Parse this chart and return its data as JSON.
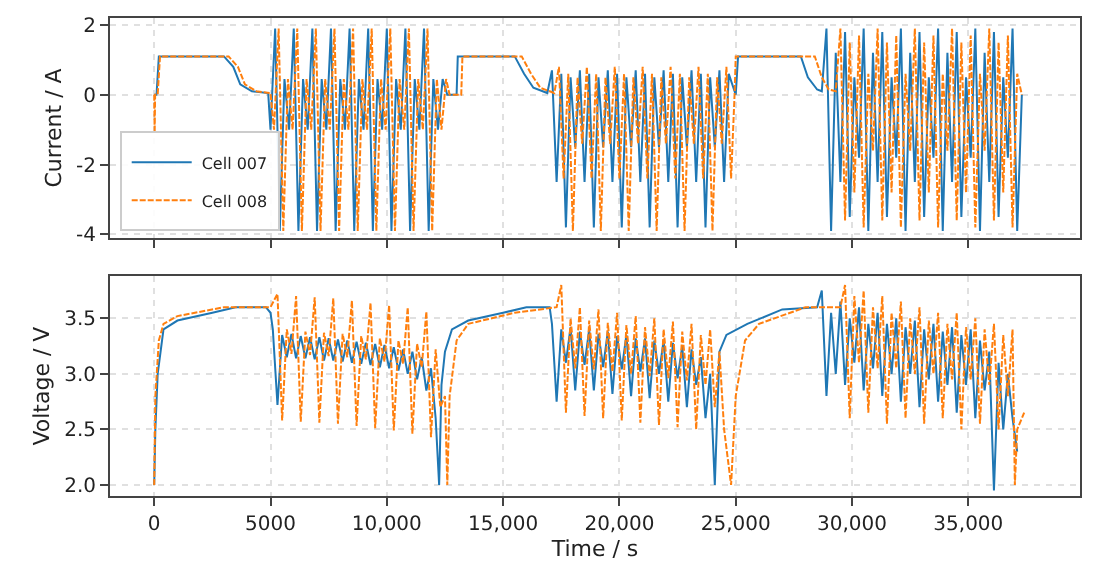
{
  "chart_data": [
    {
      "type": "line",
      "ylabel": "Current / A",
      "xlim": [
        -1900,
        39800
      ],
      "ylim": [
        -4.1,
        2.2
      ],
      "yticks": [
        -4,
        -2,
        0,
        2
      ],
      "xticks": [
        0,
        5000,
        10000,
        15000,
        20000,
        25000,
        30000,
        35000
      ],
      "tick_labels": "y",
      "grid": true,
      "legend": "bottom left",
      "marker": "none",
      "series": [
        {
          "name": "Cell 007",
          "color": "#1f77b4",
          "line_style": "solid",
          "x": [
            0,
            100,
            200,
            3000,
            3400,
            3700,
            4200,
            4900,
            5000,
            5200,
            5400,
            5600,
            5800,
            6000,
            6200,
            6400,
            6600,
            6800,
            7000,
            7200,
            7400,
            7600,
            7800,
            8000,
            8200,
            8400,
            8600,
            8800,
            9000,
            9200,
            9400,
            9600,
            9800,
            10000,
            10200,
            10400,
            10600,
            10800,
            11000,
            11200,
            11400,
            11600,
            11800,
            12000,
            12200,
            12400,
            12600,
            13000,
            13050,
            15500,
            15900,
            16300,
            16900,
            17100,
            17300,
            17500,
            17700,
            17900,
            18100,
            18300,
            18500,
            18700,
            18900,
            19100,
            19300,
            19500,
            19700,
            19900,
            20100,
            20300,
            20500,
            20700,
            20900,
            21100,
            21300,
            21500,
            21700,
            21900,
            22100,
            22300,
            22500,
            22700,
            22900,
            23100,
            23300,
            23500,
            23700,
            23900,
            24100,
            24300,
            24500,
            24700,
            25000,
            25100,
            27800,
            28100,
            28500,
            28700,
            28900,
            29100,
            29300,
            29500,
            29700,
            29900,
            30100,
            30300,
            30500,
            30700,
            30900,
            31100,
            31300,
            31500,
            31700,
            31900,
            32100,
            32300,
            32500,
            32700,
            32900,
            33100,
            33300,
            33500,
            33700,
            33900,
            34100,
            34300,
            34500,
            34700,
            34900,
            35100,
            35300,
            35500,
            35700,
            35900,
            36100,
            36300,
            36500,
            36700,
            36900,
            37100,
            37300
          ],
          "values": [
            0,
            0,
            1.1,
            1.1,
            0.8,
            0.3,
            0.1,
            0.05,
            -1,
            1.9,
            -3.9,
            0.45,
            -1,
            1.9,
            -3.9,
            0.45,
            -1,
            1.9,
            -3.9,
            0.45,
            -1,
            1.9,
            -3.9,
            0.45,
            -1,
            1.9,
            -3.9,
            0.45,
            -1,
            1.9,
            -3.9,
            0.45,
            -1,
            1.9,
            -3.9,
            0.45,
            -1,
            1.9,
            -3.9,
            0.45,
            -1,
            1.9,
            -3.9,
            0.45,
            -1,
            0.45,
            0,
            0,
            1.1,
            1.1,
            0.6,
            0.2,
            0.05,
            0.7,
            -2.5,
            0.6,
            -3.8,
            0.5,
            -1.5,
            0.7,
            -2.5,
            0.6,
            -3.8,
            0.5,
            -1.5,
            0.7,
            -2.5,
            0.6,
            -3.8,
            0.5,
            -1.5,
            0.7,
            -2.5,
            0.6,
            -3.8,
            0.5,
            -1.5,
            0.7,
            -2.5,
            0.6,
            -3.8,
            0.5,
            -1.5,
            0.7,
            -2.5,
            0.6,
            -3.8,
            0.5,
            -1.5,
            0.7,
            -2.5,
            0.6,
            0,
            1.1,
            1.1,
            0.5,
            0.15,
            0.1,
            1.9,
            -3.9,
            1.2,
            -2.5,
            1.8,
            -3.5,
            0.5,
            -1.8,
            1.9,
            -3.9,
            1.2,
            -2.5,
            1.8,
            -3.5,
            0.5,
            -1.8,
            1.9,
            -3.9,
            1.2,
            -2.5,
            1.8,
            -3.5,
            0.5,
            -1.8,
            1.9,
            -3.9,
            1.2,
            -2.5,
            1.8,
            -3.5,
            0.5,
            -1.8,
            1.9,
            -3.9,
            1.2,
            -2.5,
            1.8,
            -3.5,
            0.5,
            -1.8,
            1.9,
            -3.9,
            0
          ]
        },
        {
          "name": "Cell 008",
          "color": "#ff7f0e",
          "line_style": "dashed",
          "x": [
            0,
            20,
            40,
            150,
            250,
            3200,
            3600,
            3900,
            4400,
            5000,
            5150,
            5350,
            5550,
            5750,
            5950,
            6150,
            6350,
            6550,
            6750,
            6950,
            7150,
            7350,
            7550,
            7750,
            7950,
            8150,
            8350,
            8550,
            8750,
            8950,
            9150,
            9350,
            9550,
            9750,
            9950,
            10150,
            10350,
            10550,
            10750,
            10950,
            11150,
            11350,
            11550,
            11750,
            11950,
            12150,
            12350,
            12550,
            12700,
            13200,
            13250,
            15800,
            16200,
            16600,
            17200,
            17400,
            17600,
            17800,
            18000,
            18200,
            18400,
            18600,
            18800,
            19000,
            19200,
            19400,
            19600,
            19800,
            20000,
            20200,
            20400,
            20600,
            20800,
            21000,
            21200,
            21400,
            21600,
            21800,
            22000,
            22200,
            22400,
            22600,
            22800,
            23000,
            23200,
            23400,
            23600,
            23800,
            24000,
            24200,
            24400,
            24600,
            24800,
            24950,
            25000,
            28400,
            28700,
            29000,
            29300,
            29500,
            29700,
            29900,
            30100,
            30300,
            30500,
            30700,
            30900,
            31100,
            31300,
            31500,
            31700,
            31900,
            32100,
            32300,
            32500,
            32700,
            32900,
            33100,
            33300,
            33500,
            33700,
            33900,
            34100,
            34300,
            34500,
            34700,
            34900,
            35100,
            35300,
            35500,
            35700,
            35900,
            36100,
            36300,
            36500,
            36700,
            36900,
            37100,
            37300
          ],
          "values": [
            0,
            -1.1,
            0,
            0,
            1.1,
            1.1,
            0.8,
            0.3,
            0.1,
            0.05,
            -1,
            1.9,
            -3.9,
            0.45,
            -1,
            1.9,
            -3.9,
            0.45,
            -1,
            1.9,
            -3.9,
            0.45,
            -1,
            1.9,
            -3.9,
            0.45,
            -1,
            1.9,
            -3.9,
            0.45,
            -1,
            1.9,
            -3.9,
            0.45,
            -1,
            1.9,
            -3.9,
            0.45,
            -1,
            1.9,
            -3.9,
            0.45,
            -1,
            1.9,
            -3.9,
            0.45,
            -1,
            0.45,
            0,
            0,
            1.1,
            1.1,
            0.6,
            0.2,
            0.05,
            0.8,
            -2.4,
            0.6,
            -3.9,
            0.5,
            -1.4,
            0.8,
            -2.4,
            0.6,
            -3.9,
            0.5,
            -1.4,
            0.8,
            -2.4,
            0.6,
            -3.9,
            0.5,
            -1.4,
            0.8,
            -2.4,
            0.6,
            -3.9,
            0.5,
            -1.4,
            0.8,
            -2.4,
            0.6,
            -3.9,
            0.5,
            -1.4,
            0.8,
            -2.4,
            0.6,
            -3.9,
            0.5,
            -1.4,
            0.8,
            -2.4,
            0,
            1.1,
            1.1,
            0.5,
            0.15,
            0.1,
            1.9,
            -3.6,
            1.5,
            -2.8,
            1.7,
            -3.8,
            0.6,
            -1.6,
            1.9,
            -3.6,
            1.5,
            -2.8,
            1.7,
            -3.8,
            0.6,
            -1.6,
            1.9,
            -3.6,
            1.5,
            -2.8,
            1.7,
            -3.8,
            0.6,
            -1.6,
            1.9,
            -3.6,
            1.5,
            -2.8,
            1.7,
            -3.8,
            0.6,
            -1.6,
            1.9,
            -3.6,
            1.5,
            -2.8,
            1.7,
            -3.8,
            0.6,
            0
          ]
        }
      ]
    },
    {
      "type": "line",
      "xlabel": "Time / s",
      "ylabel": "Voltage / V",
      "xlim": [
        -1900,
        39800
      ],
      "ylim": [
        1.9,
        3.88
      ],
      "yticks": [
        {
          "value": 2,
          "label": "2.0"
        },
        2.5,
        {
          "value": 3,
          "label": "3.0"
        },
        3.5
      ],
      "xticks": [
        0,
        5000,
        {
          "value": 10000,
          "label": "10,000"
        },
        {
          "value": 15000,
          "label": "15,000"
        },
        {
          "value": 20000,
          "label": "20,000"
        },
        {
          "value": 25000,
          "label": "25,000"
        },
        {
          "value": 30000,
          "label": "30,000"
        },
        {
          "value": 35000,
          "label": "35,000"
        }
      ],
      "grid": true,
      "marker": "none",
      "series": [
        {
          "color": "#1f77b4",
          "line_style": "solid",
          "x": [
            0,
            50,
            150,
            400,
            1000,
            2500,
            3500,
            4800,
            5000,
            5100,
            5300,
            5500,
            5700,
            5900,
            6100,
            6300,
            6500,
            6700,
            6900,
            7100,
            7300,
            7500,
            7700,
            7900,
            8100,
            8300,
            8500,
            8700,
            8900,
            9100,
            9300,
            9500,
            9700,
            9900,
            10100,
            10300,
            10500,
            10700,
            10900,
            11100,
            11300,
            11500,
            11700,
            11900,
            12100,
            12250,
            12350,
            12500,
            12800,
            13500,
            15000,
            16000,
            17000,
            17100,
            17300,
            17500,
            17700,
            17900,
            18100,
            18300,
            18500,
            18700,
            18900,
            19100,
            19300,
            19500,
            19700,
            19900,
            20100,
            20300,
            20500,
            20700,
            20900,
            21100,
            21300,
            21500,
            21700,
            21900,
            22100,
            22300,
            22500,
            22700,
            22900,
            23100,
            23300,
            23500,
            23700,
            23900,
            24100,
            24300,
            24600,
            25500,
            27000,
            28500,
            28700,
            28900,
            29100,
            29300,
            29500,
            29700,
            29900,
            30100,
            30300,
            30500,
            30700,
            30900,
            31100,
            31300,
            31500,
            31700,
            31900,
            32100,
            32300,
            32500,
            32700,
            32900,
            33100,
            33300,
            33500,
            33700,
            33900,
            34100,
            34300,
            34500,
            34700,
            34900,
            35100,
            35300,
            35500,
            35700,
            35900,
            36100,
            36300,
            36500,
            36700,
            36900,
            37100
          ],
          "values": [
            2.0,
            2.5,
            3.0,
            3.4,
            3.48,
            3.55,
            3.6,
            3.6,
            3.55,
            3.4,
            2.72,
            3.35,
            3.15,
            3.36,
            3.14,
            3.34,
            3.14,
            3.33,
            3.13,
            3.33,
            3.12,
            3.32,
            3.12,
            3.31,
            3.11,
            3.3,
            3.1,
            3.29,
            3.09,
            3.28,
            3.08,
            3.27,
            3.06,
            3.26,
            3.05,
            3.24,
            3.03,
            3.22,
            3.0,
            3.2,
            2.95,
            3.15,
            2.85,
            3.05,
            2.6,
            2.0,
            2.9,
            3.2,
            3.4,
            3.48,
            3.55,
            3.6,
            3.6,
            3.45,
            2.75,
            3.4,
            3.1,
            3.42,
            2.85,
            3.38,
            3.08,
            3.4,
            2.85,
            3.36,
            3.06,
            3.38,
            2.82,
            3.34,
            3.04,
            3.35,
            2.8,
            3.32,
            3.02,
            3.32,
            2.78,
            3.3,
            3.0,
            3.3,
            2.75,
            3.28,
            2.96,
            3.25,
            2.7,
            3.22,
            2.9,
            3.15,
            2.6,
            3.0,
            2.0,
            3.2,
            3.35,
            3.45,
            3.58,
            3.6,
            3.75,
            2.8,
            3.55,
            3.0,
            3.65,
            2.9,
            3.5,
            3.1,
            3.6,
            2.85,
            3.45,
            3.05,
            3.55,
            2.8,
            3.45,
            3.0,
            3.5,
            2.75,
            3.42,
            3.0,
            3.48,
            2.7,
            3.4,
            2.95,
            3.45,
            2.75,
            3.38,
            2.9,
            3.42,
            2.65,
            3.35,
            2.9,
            3.4,
            2.6,
            3.3,
            2.85,
            3.2,
            1.95,
            3.1,
            2.5,
            3.0,
            2.6,
            2.3
          ]
        },
        {
          "color": "#ff7f0e",
          "line_style": "dashed",
          "x": [
            0,
            50,
            200,
            400,
            1000,
            3000,
            5000,
            5300,
            5500,
            5700,
            5900,
            6100,
            6300,
            6500,
            6700,
            6900,
            7100,
            7300,
            7500,
            7700,
            7900,
            8100,
            8300,
            8500,
            8700,
            8900,
            9100,
            9300,
            9500,
            9700,
            9900,
            10100,
            10300,
            10500,
            10700,
            10900,
            11100,
            11300,
            11500,
            11700,
            11900,
            12100,
            12300,
            12500,
            12600,
            12700,
            13000,
            13500,
            15500,
            17300,
            17500,
            17700,
            17900,
            18100,
            18300,
            18500,
            18700,
            18900,
            19100,
            19300,
            19500,
            19700,
            19900,
            20100,
            20300,
            20500,
            20700,
            20900,
            21100,
            21300,
            21500,
            21700,
            21900,
            22100,
            22300,
            22500,
            22700,
            22900,
            23100,
            23300,
            23500,
            23700,
            23900,
            24100,
            24300,
            24500,
            24800,
            25000,
            25400,
            26000,
            28000,
            29500,
            29700,
            29900,
            30100,
            30300,
            30500,
            30700,
            30900,
            31100,
            31300,
            31500,
            31700,
            31900,
            32100,
            32300,
            32500,
            32700,
            32900,
            33100,
            33300,
            33500,
            33700,
            33900,
            34100,
            34300,
            34500,
            34700,
            34900,
            35100,
            35300,
            35500,
            35700,
            35900,
            36100,
            36300,
            36500,
            36700,
            36900,
            37000,
            37100,
            37400
          ],
          "values": [
            2.0,
            2.8,
            3.3,
            3.45,
            3.52,
            3.6,
            3.6,
            3.72,
            2.58,
            3.4,
            3.18,
            3.7,
            2.57,
            3.38,
            3.17,
            3.69,
            2.56,
            3.37,
            3.16,
            3.68,
            2.55,
            3.36,
            3.15,
            3.66,
            2.53,
            3.34,
            3.13,
            3.64,
            2.51,
            3.32,
            3.11,
            3.62,
            2.49,
            3.3,
            3.09,
            3.6,
            2.46,
            3.27,
            3.06,
            3.56,
            2.43,
            3.22,
            2.7,
            2.8,
            2.0,
            2.8,
            3.3,
            3.45,
            3.55,
            3.6,
            3.8,
            2.65,
            3.5,
            3.05,
            3.6,
            2.62,
            3.48,
            3.04,
            3.58,
            2.6,
            3.46,
            3.02,
            3.55,
            2.58,
            3.44,
            3.0,
            3.52,
            2.56,
            3.42,
            2.98,
            3.5,
            2.54,
            3.4,
            2.96,
            3.47,
            2.52,
            3.38,
            2.94,
            3.45,
            2.5,
            3.35,
            2.9,
            3.4,
            2.7,
            3.2,
            2.5,
            2.0,
            2.8,
            3.3,
            3.45,
            3.6,
            3.6,
            3.8,
            2.6,
            3.7,
            3.1,
            3.75,
            2.65,
            3.6,
            3.05,
            3.7,
            2.55,
            3.55,
            3.05,
            3.65,
            2.6,
            3.5,
            3.0,
            3.6,
            2.55,
            3.48,
            3.0,
            3.55,
            2.6,
            3.45,
            2.95,
            3.55,
            2.5,
            3.42,
            2.95,
            3.5,
            2.55,
            3.4,
            2.9,
            3.45,
            2.5,
            3.35,
            2.8,
            3.4,
            2.0,
            2.5,
            2.65
          ]
        }
      ]
    }
  ]
}
